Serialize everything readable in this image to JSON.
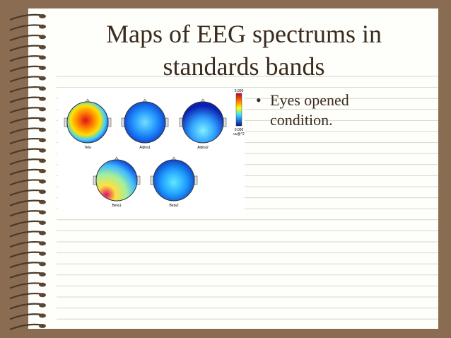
{
  "title": {
    "line1": "Maps of EEG spectrums in",
    "line2": "standards bands"
  },
  "figure": {
    "maps": [
      {
        "label": "Teta"
      },
      {
        "label": "Alpha1"
      },
      {
        "label": "Alpha2"
      },
      {
        "label": "Beta1"
      },
      {
        "label": "Beta2"
      }
    ],
    "colorbar": {
      "max": "5.000",
      "min": "0.000",
      "unit": "uv@^2"
    }
  },
  "bullets": [
    {
      "line1": "Eyes opened",
      "line2": "condition."
    }
  ]
}
